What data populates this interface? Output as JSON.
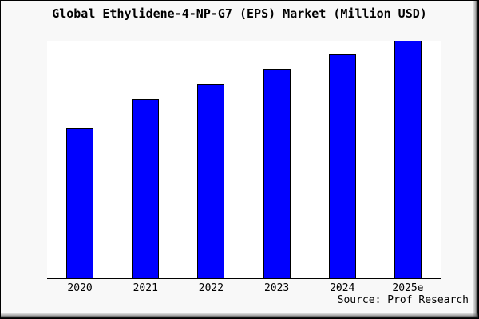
{
  "chart_data": {
    "type": "bar",
    "title": "Global Ethylidene-4-NP-G7 (EPS) Market (Million USD)",
    "categories": [
      "2020",
      "2021",
      "2022",
      "2023",
      "2024",
      "2025e"
    ],
    "values": [
      63,
      75.4,
      81.8,
      87.9,
      94.3,
      100
    ],
    "value_note": "No y-axis ticks or data labels shown; values are relative bar heights as percent of the 2025e bar",
    "xlabel": "",
    "ylabel": "",
    "ylim": [
      0,
      100
    ],
    "grid": false,
    "legend": false,
    "bar_color": "#0000ff",
    "bar_border_color": "#000000"
  },
  "source": {
    "text": "Source: Prof Research"
  },
  "colors": {
    "canvas_background": "#f8f8f8",
    "plot_background": "#ffffff",
    "axis": "#000000",
    "text": "#000000"
  }
}
